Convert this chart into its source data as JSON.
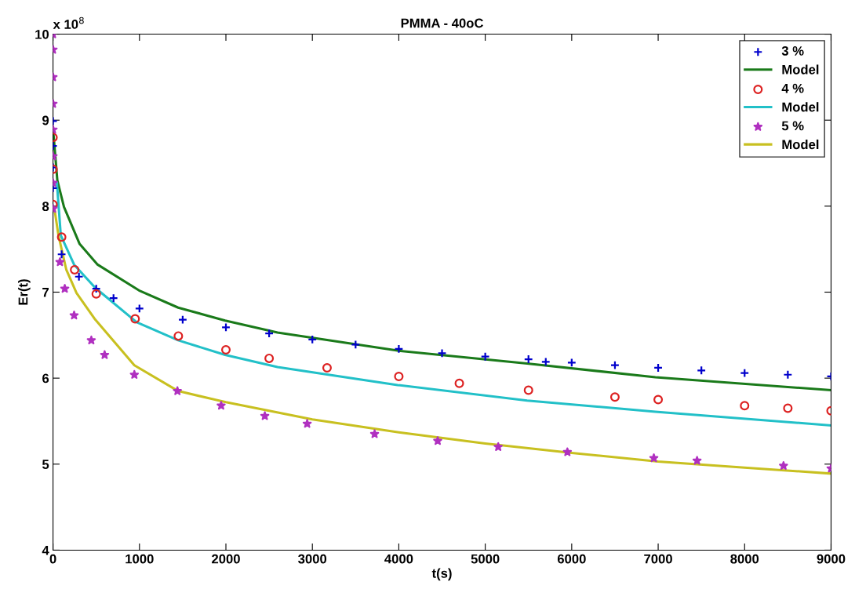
{
  "chart_data": {
    "type": "scatter",
    "title": "PMMA - 40oC",
    "xlabel": "t(s)",
    "ylabel": "Er(t)",
    "annotations": [
      "x 10$^{8}$"
    ],
    "xlim": [
      0,
      9000
    ],
    "xticks": [
      0,
      1000,
      2000,
      3000,
      4000,
      5000,
      6000,
      7000,
      8000,
      9000
    ],
    "ylim": [
      4,
      10
    ],
    "yticks": [
      4,
      5,
      6,
      7,
      8,
      9,
      10
    ],
    "grid": false,
    "legend": "top right",
    "series": [
      {
        "name": "3 %",
        "marker": "cross",
        "color": "#0000cc",
        "x": [
          0,
          0,
          0,
          0,
          100,
          300,
          500,
          700,
          1000,
          1500,
          2000,
          2500,
          3000,
          3500,
          4000,
          4500,
          5000,
          5500,
          5700,
          6000,
          6500,
          7000,
          7500,
          8000,
          8500,
          9000
        ],
        "values": [
          8.99,
          8.7,
          8.45,
          8.21,
          7.44,
          7.18,
          7.04,
          6.93,
          6.81,
          6.68,
          6.59,
          6.52,
          6.45,
          6.39,
          6.34,
          6.29,
          6.25,
          6.22,
          6.19,
          6.18,
          6.15,
          6.12,
          6.09,
          6.06,
          6.04,
          6.02
        ]
      },
      {
        "name": "Model",
        "type": "line",
        "color": "#1a7a1a",
        "x": [
          0,
          50,
          127,
          308,
          516,
          995,
          1448,
          1991,
          2597,
          3986,
          5484,
          6968,
          9000
        ],
        "values": [
          8.9,
          8.3,
          7.99,
          7.56,
          7.32,
          7.02,
          6.82,
          6.67,
          6.53,
          6.32,
          6.17,
          6.01,
          5.86
        ]
      },
      {
        "name": "4 %",
        "marker": "circle",
        "color": "#dd2222",
        "x": [
          0,
          0,
          0,
          100,
          250,
          500,
          950,
          1450,
          2000,
          2500,
          3170,
          4000,
          4700,
          5500,
          6500,
          7000,
          8000,
          8500,
          9000
        ],
        "values": [
          8.8,
          8.43,
          8.02,
          7.64,
          7.26,
          6.98,
          6.69,
          6.49,
          6.33,
          6.23,
          6.12,
          6.02,
          5.94,
          5.86,
          5.78,
          5.75,
          5.68,
          5.65,
          5.62
        ]
      },
      {
        "name": "Model",
        "type": "line",
        "color": "#22c0c8",
        "x": [
          45,
          90,
          244,
          489,
          968,
          1448,
          1991,
          2597,
          3986,
          5484,
          6968,
          9000
        ],
        "values": [
          8.27,
          7.66,
          7.32,
          7.05,
          6.65,
          6.44,
          6.27,
          6.13,
          5.92,
          5.74,
          5.61,
          5.45
        ]
      },
      {
        "name": "5 %",
        "marker": "star",
        "color": "#b030c0",
        "x": [
          0,
          0,
          0,
          0,
          0,
          0,
          0,
          0,
          80,
          136,
          244,
          443,
          597,
          941,
          1439,
          1945,
          2450,
          2940,
          3720,
          4450,
          5150,
          5950,
          6950,
          7450,
          8450,
          9000
        ],
        "values": [
          10.0,
          9.82,
          9.5,
          9.19,
          8.89,
          8.58,
          8.27,
          7.97,
          7.35,
          7.04,
          6.73,
          6.44,
          6.27,
          6.04,
          5.85,
          5.68,
          5.56,
          5.47,
          5.35,
          5.27,
          5.2,
          5.14,
          5.07,
          5.04,
          4.98,
          4.95
        ]
      },
      {
        "name": "Model",
        "type": "line",
        "color": "#c8c020",
        "x": [
          18,
          63,
          154,
          272,
          489,
          941,
          1448,
          2000,
          3000,
          4000,
          5000,
          6000,
          7000,
          8000,
          9000
        ],
        "values": [
          7.96,
          7.66,
          7.26,
          6.99,
          6.68,
          6.15,
          5.85,
          5.72,
          5.52,
          5.37,
          5.24,
          5.13,
          5.03,
          4.96,
          4.89
        ]
      }
    ]
  }
}
